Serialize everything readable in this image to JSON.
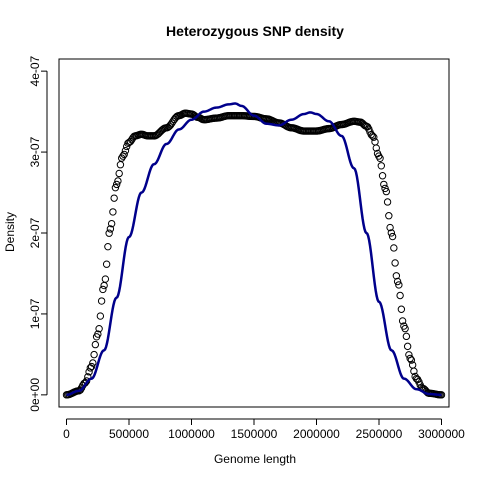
{
  "chart_data": {
    "type": "line",
    "title": "Heterozygous SNP density",
    "xlabel": "Genome length",
    "ylabel": "Density",
    "xlim": [
      -60000,
      3060000
    ],
    "ylim": [
      -1.5e-08,
      4.15e-07
    ],
    "x_ticks": [
      0,
      500000,
      1000000,
      1500000,
      2000000,
      2500000,
      3000000
    ],
    "x_tick_labels": [
      "0",
      "500000",
      "1000000",
      "1500000",
      "2000000",
      "2500000",
      "3000000"
    ],
    "y_ticks": [
      0,
      1e-07,
      2e-07,
      3e-07,
      4e-07
    ],
    "y_tick_labels": [
      "0e+00",
      "1e-07",
      "2e-07",
      "3e-07",
      "4e-07"
    ],
    "grid": false,
    "legend": "none",
    "series": [
      {
        "style": "points",
        "marker": "open-circle",
        "color": "#000000",
        "x": [
          0,
          100000,
          150000,
          200000,
          250000,
          300000,
          350000,
          400000,
          450000,
          500000,
          550000,
          600000,
          650000,
          700000,
          800000,
          900000,
          950000,
          1000000,
          1050000,
          1100000,
          1200000,
          1300000,
          1400000,
          1500000,
          1600000,
          1700000,
          1800000,
          1900000,
          2000000,
          2100000,
          2200000,
          2300000,
          2350000,
          2400000,
          2450000,
          2500000,
          2550000,
          2600000,
          2650000,
          2700000,
          2750000,
          2800000,
          2850000,
          2900000,
          3000000
        ],
        "y": [
          0.0,
          5e-09,
          1.5e-08,
          3.5e-08,
          7.5e-08,
          1.35e-07,
          2.05e-07,
          2.6e-07,
          2.95e-07,
          3.12e-07,
          3.2e-07,
          3.22e-07,
          3.2e-07,
          3.2e-07,
          3.3e-07,
          3.45e-07,
          3.48e-07,
          3.47e-07,
          3.43e-07,
          3.4e-07,
          3.42e-07,
          3.45e-07,
          3.45e-07,
          3.44e-07,
          3.41e-07,
          3.36e-07,
          3.3e-07,
          3.26e-07,
          3.26e-07,
          3.29e-07,
          3.34e-07,
          3.38e-07,
          3.37e-07,
          3.32e-07,
          3.2e-07,
          2.95e-07,
          2.55e-07,
          2e-07,
          1.4e-07,
          8.5e-08,
          4.5e-08,
          2e-08,
          8e-09,
          2e-09,
          0.0
        ]
      },
      {
        "style": "line",
        "color": "#00008B",
        "x": [
          0,
          100000,
          200000,
          300000,
          400000,
          500000,
          600000,
          700000,
          800000,
          900000,
          1000000,
          1100000,
          1200000,
          1300000,
          1350000,
          1400000,
          1500000,
          1600000,
          1700000,
          1800000,
          1900000,
          1950000,
          2000000,
          2100000,
          2200000,
          2300000,
          2400000,
          2500000,
          2600000,
          2700000,
          2800000,
          2900000,
          3000000
        ],
        "y": [
          0.0,
          5e-09,
          2e-08,
          5.5e-08,
          1.2e-07,
          1.95e-07,
          2.5e-07,
          2.85e-07,
          3.1e-07,
          3.28e-07,
          3.4e-07,
          3.5e-07,
          3.55e-07,
          3.59e-07,
          3.6e-07,
          3.57e-07,
          3.45e-07,
          3.35e-07,
          3.33e-07,
          3.4e-07,
          3.47e-07,
          3.49e-07,
          3.47e-07,
          3.38e-07,
          3.2e-07,
          2.8e-07,
          2e-07,
          1.15e-07,
          5.5e-08,
          2e-08,
          7e-09,
          1e-09,
          0.0
        ]
      }
    ]
  }
}
